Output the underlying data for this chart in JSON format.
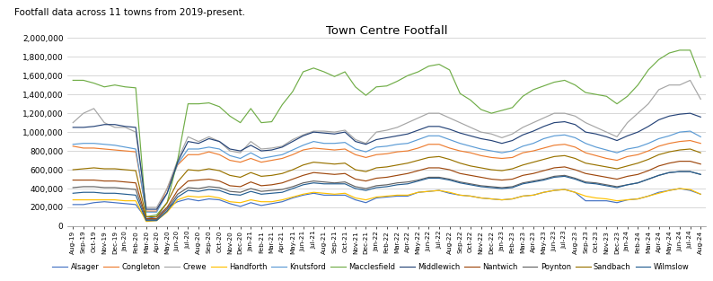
{
  "title": "Town Centre Footfall",
  "subtitle": "Footfall data across 11 towns from 2019-present.",
  "ylim": [
    0,
    2000000
  ],
  "yticks": [
    0,
    200000,
    400000,
    600000,
    800000,
    1000000,
    1200000,
    1400000,
    1600000,
    1800000,
    2000000
  ],
  "x_labels": [
    "Aug-19",
    "Sep-19",
    "Oct-19",
    "Nov-19",
    "Dec-19",
    "Jan-20",
    "Feb-20",
    "Mar-20",
    "Apr-20",
    "May-20",
    "Jun-20",
    "Jul-20",
    "Aug-20",
    "Sep-20",
    "Oct-20",
    "Nov-20",
    "Dec-20",
    "Jan-21",
    "Feb-21",
    "Mar-21",
    "Apr-21",
    "May-21",
    "Jun-21",
    "Jul-21",
    "Aug-21",
    "Sep-21",
    "Oct-21",
    "Nov-21",
    "Dec-21",
    "Jan-22",
    "Feb-22",
    "Mar-22",
    "Apr-22",
    "May-22",
    "Jun-22",
    "Jul-22",
    "Aug-22",
    "Sep-22",
    "Oct-22",
    "Nov-22",
    "Dec-22",
    "Jan-23",
    "Feb-23",
    "Mar-23",
    "Apr-23",
    "May-23",
    "Jun-23",
    "Jul-23",
    "Aug-23",
    "Sep-23",
    "Oct-23",
    "Nov-23",
    "Dec-23",
    "Jan-24",
    "Feb-24",
    "Mar-24",
    "Apr-24",
    "May-24",
    "Jun-24",
    "Jul-24",
    "Aug-24"
  ],
  "series": {
    "Alsager": {
      "color": "#4472C4",
      "data": [
        230000,
        230000,
        250000,
        260000,
        250000,
        240000,
        230000,
        80000,
        100000,
        200000,
        260000,
        290000,
        270000,
        290000,
        280000,
        240000,
        210000,
        250000,
        220000,
        240000,
        260000,
        300000,
        330000,
        350000,
        330000,
        330000,
        330000,
        280000,
        250000,
        300000,
        310000,
        320000,
        320000,
        360000,
        370000,
        380000,
        350000,
        330000,
        320000,
        300000,
        290000,
        280000,
        290000,
        320000,
        330000,
        360000,
        380000,
        390000,
        360000,
        270000,
        270000,
        270000,
        250000,
        280000,
        290000,
        320000,
        360000,
        380000,
        400000,
        380000,
        340000
      ]
    },
    "Congleton": {
      "color": "#ED7D31",
      "data": [
        850000,
        830000,
        830000,
        820000,
        810000,
        800000,
        790000,
        160000,
        160000,
        400000,
        650000,
        760000,
        760000,
        790000,
        760000,
        700000,
        680000,
        720000,
        680000,
        700000,
        720000,
        760000,
        810000,
        830000,
        820000,
        810000,
        820000,
        760000,
        730000,
        760000,
        770000,
        790000,
        800000,
        830000,
        870000,
        870000,
        830000,
        800000,
        780000,
        750000,
        730000,
        720000,
        730000,
        780000,
        800000,
        830000,
        860000,
        870000,
        840000,
        780000,
        750000,
        720000,
        700000,
        740000,
        760000,
        800000,
        850000,
        880000,
        900000,
        910000,
        880000
      ]
    },
    "Crewe": {
      "color": "#A5A5A5",
      "data": [
        1100000,
        1200000,
        1250000,
        1100000,
        1050000,
        1050000,
        1000000,
        200000,
        200000,
        400000,
        700000,
        950000,
        900000,
        950000,
        900000,
        800000,
        780000,
        900000,
        820000,
        830000,
        850000,
        920000,
        970000,
        1010000,
        1010000,
        1000000,
        1020000,
        920000,
        880000,
        1000000,
        1020000,
        1050000,
        1100000,
        1150000,
        1200000,
        1200000,
        1150000,
        1100000,
        1050000,
        1000000,
        980000,
        940000,
        980000,
        1050000,
        1100000,
        1150000,
        1200000,
        1200000,
        1170000,
        1100000,
        1050000,
        1000000,
        950000,
        1100000,
        1200000,
        1300000,
        1450000,
        1500000,
        1500000,
        1550000,
        1350000
      ]
    },
    "Handforth": {
      "color": "#FFC000",
      "data": [
        280000,
        280000,
        280000,
        280000,
        280000,
        270000,
        270000,
        50000,
        60000,
        150000,
        280000,
        320000,
        310000,
        320000,
        300000,
        260000,
        250000,
        280000,
        260000,
        260000,
        280000,
        310000,
        340000,
        360000,
        350000,
        340000,
        350000,
        300000,
        280000,
        310000,
        320000,
        330000,
        330000,
        360000,
        370000,
        380000,
        360000,
        330000,
        320000,
        300000,
        290000,
        280000,
        290000,
        320000,
        330000,
        360000,
        380000,
        390000,
        360000,
        320000,
        300000,
        290000,
        270000,
        280000,
        290000,
        320000,
        350000,
        380000,
        400000,
        390000,
        340000
      ]
    },
    "Knutsford": {
      "color": "#5B9BD5",
      "data": [
        870000,
        880000,
        880000,
        870000,
        860000,
        840000,
        820000,
        150000,
        150000,
        350000,
        660000,
        820000,
        820000,
        840000,
        820000,
        750000,
        720000,
        780000,
        720000,
        740000,
        760000,
        810000,
        860000,
        900000,
        880000,
        880000,
        890000,
        820000,
        790000,
        840000,
        850000,
        870000,
        880000,
        920000,
        960000,
        960000,
        920000,
        880000,
        850000,
        820000,
        800000,
        780000,
        800000,
        850000,
        880000,
        930000,
        960000,
        970000,
        940000,
        880000,
        840000,
        810000,
        780000,
        820000,
        840000,
        880000,
        930000,
        960000,
        1000000,
        1010000,
        950000
      ]
    },
    "Macclesfield": {
      "color": "#70AD47",
      "data": [
        1550000,
        1550000,
        1520000,
        1480000,
        1500000,
        1480000,
        1470000,
        100000,
        120000,
        250000,
        700000,
        1300000,
        1300000,
        1310000,
        1270000,
        1170000,
        1100000,
        1250000,
        1100000,
        1110000,
        1290000,
        1430000,
        1640000,
        1680000,
        1640000,
        1590000,
        1640000,
        1480000,
        1390000,
        1480000,
        1490000,
        1540000,
        1600000,
        1640000,
        1700000,
        1720000,
        1660000,
        1410000,
        1340000,
        1240000,
        1200000,
        1230000,
        1260000,
        1380000,
        1450000,
        1490000,
        1530000,
        1550000,
        1500000,
        1420000,
        1400000,
        1380000,
        1300000,
        1380000,
        1500000,
        1660000,
        1770000,
        1840000,
        1870000,
        1870000,
        1580000
      ]
    },
    "Middlewich": {
      "color": "#264478",
      "data": [
        1050000,
        1050000,
        1060000,
        1080000,
        1080000,
        1060000,
        1050000,
        180000,
        180000,
        350000,
        680000,
        900000,
        880000,
        930000,
        900000,
        820000,
        800000,
        860000,
        800000,
        810000,
        840000,
        900000,
        960000,
        1000000,
        990000,
        980000,
        1000000,
        900000,
        870000,
        920000,
        940000,
        960000,
        980000,
        1020000,
        1060000,
        1060000,
        1030000,
        990000,
        960000,
        930000,
        910000,
        880000,
        910000,
        970000,
        1010000,
        1060000,
        1100000,
        1110000,
        1080000,
        1000000,
        980000,
        950000,
        910000,
        960000,
        1000000,
        1060000,
        1130000,
        1170000,
        1190000,
        1200000,
        1160000
      ]
    },
    "Nantwich": {
      "color": "#9E480E",
      "data": [
        490000,
        490000,
        490000,
        480000,
        480000,
        470000,
        460000,
        80000,
        80000,
        200000,
        380000,
        480000,
        490000,
        500000,
        480000,
        430000,
        420000,
        470000,
        430000,
        440000,
        460000,
        500000,
        540000,
        570000,
        560000,
        550000,
        560000,
        500000,
        480000,
        510000,
        520000,
        540000,
        560000,
        590000,
        620000,
        620000,
        600000,
        560000,
        540000,
        520000,
        500000,
        490000,
        500000,
        540000,
        560000,
        590000,
        620000,
        630000,
        600000,
        560000,
        540000,
        520000,
        500000,
        530000,
        550000,
        590000,
        640000,
        670000,
        690000,
        690000,
        660000
      ]
    },
    "Poynton": {
      "color": "#636363",
      "data": [
        410000,
        420000,
        420000,
        410000,
        410000,
        400000,
        390000,
        70000,
        70000,
        180000,
        340000,
        410000,
        400000,
        420000,
        410000,
        370000,
        360000,
        400000,
        370000,
        380000,
        390000,
        420000,
        460000,
        480000,
        470000,
        460000,
        470000,
        420000,
        400000,
        430000,
        440000,
        460000,
        470000,
        490000,
        520000,
        520000,
        500000,
        470000,
        450000,
        430000,
        420000,
        410000,
        420000,
        460000,
        480000,
        500000,
        530000,
        540000,
        510000,
        470000,
        460000,
        440000,
        420000,
        440000,
        460000,
        500000,
        540000,
        570000,
        580000,
        580000,
        550000
      ]
    },
    "Sandbach": {
      "color": "#997300",
      "data": [
        600000,
        610000,
        620000,
        610000,
        610000,
        600000,
        590000,
        100000,
        100000,
        250000,
        470000,
        600000,
        590000,
        610000,
        590000,
        540000,
        520000,
        570000,
        530000,
        540000,
        560000,
        600000,
        650000,
        680000,
        670000,
        660000,
        670000,
        600000,
        580000,
        620000,
        630000,
        650000,
        670000,
        700000,
        730000,
        740000,
        710000,
        670000,
        640000,
        620000,
        600000,
        590000,
        610000,
        650000,
        680000,
        710000,
        740000,
        750000,
        720000,
        670000,
        650000,
        630000,
        610000,
        640000,
        670000,
        710000,
        760000,
        790000,
        810000,
        820000,
        780000
      ]
    },
    "Wilmslow": {
      "color": "#255E91",
      "data": [
        350000,
        360000,
        360000,
        350000,
        350000,
        340000,
        330000,
        60000,
        60000,
        160000,
        310000,
        380000,
        370000,
        390000,
        380000,
        340000,
        330000,
        370000,
        340000,
        350000,
        360000,
        400000,
        440000,
        460000,
        450000,
        450000,
        450000,
        400000,
        380000,
        410000,
        420000,
        440000,
        450000,
        480000,
        510000,
        510000,
        490000,
        460000,
        440000,
        420000,
        410000,
        400000,
        410000,
        450000,
        470000,
        490000,
        520000,
        530000,
        500000,
        460000,
        450000,
        430000,
        410000,
        440000,
        460000,
        500000,
        540000,
        570000,
        580000,
        580000,
        550000
      ]
    }
  }
}
